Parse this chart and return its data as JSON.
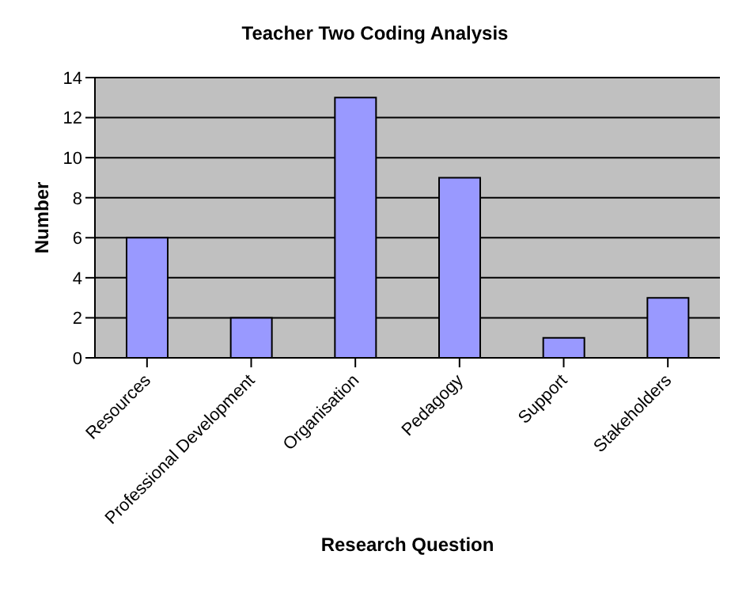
{
  "chart_data": {
    "type": "bar",
    "title": "Teacher Two Coding Analysis",
    "xlabel": "Research Question",
    "ylabel": "Number",
    "categories": [
      "Resources",
      "Professional Development",
      "Organisation",
      "Pedagogy",
      "Support",
      "Stakeholders"
    ],
    "values": [
      6,
      2,
      13,
      9,
      1,
      3
    ],
    "color": "#9999ff",
    "ylim": [
      0,
      14
    ],
    "yticks": [
      0,
      2,
      4,
      6,
      8,
      10,
      12,
      14
    ],
    "grid": "y"
  }
}
